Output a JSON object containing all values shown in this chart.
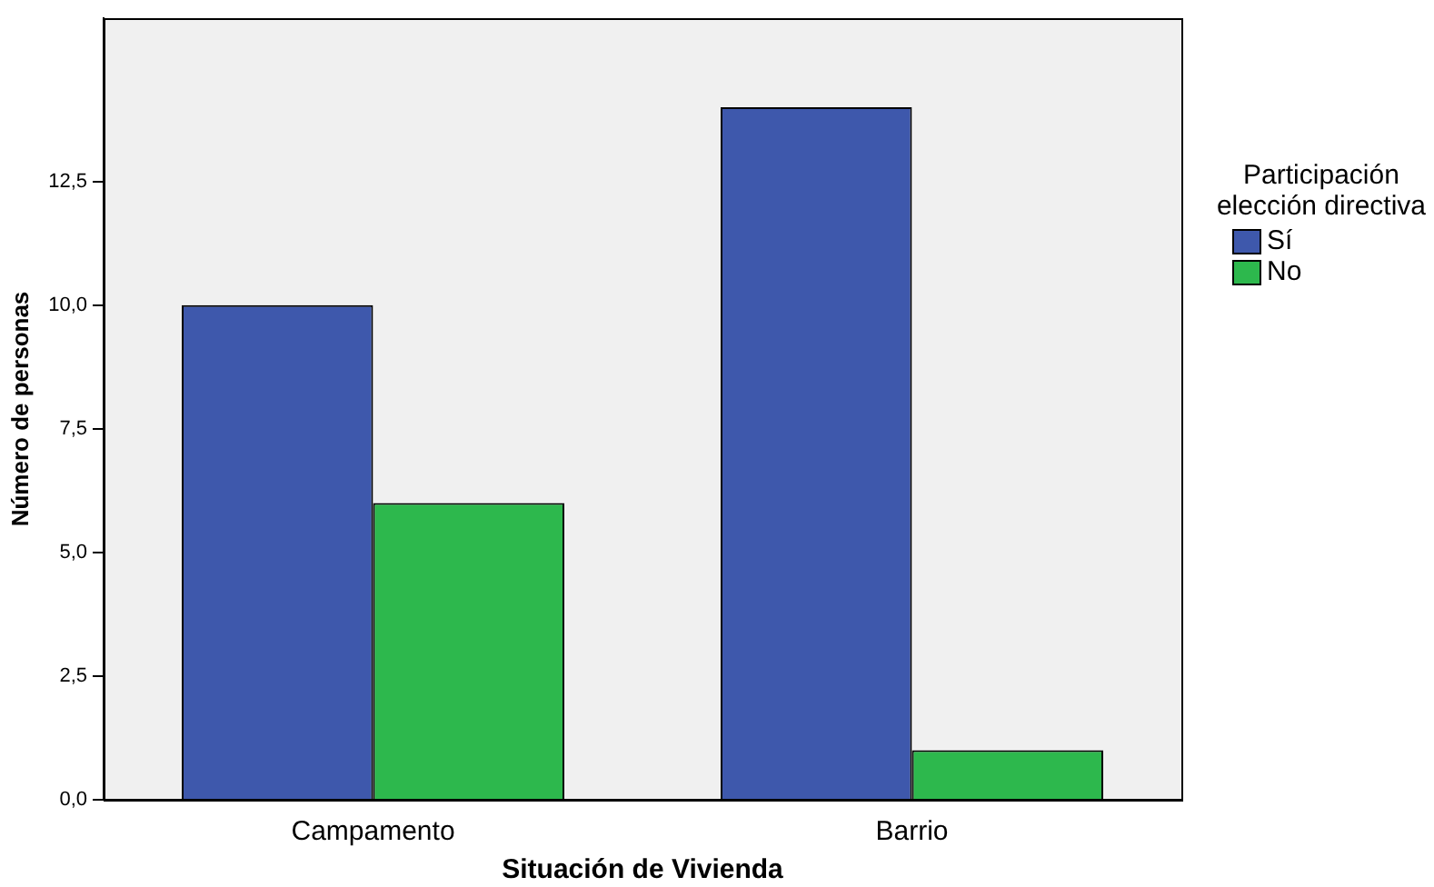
{
  "chart_data": {
    "type": "bar",
    "xlabel": "Situación de Vivienda",
    "ylabel": "Número de personas",
    "legend_title": "Participación elección directiva",
    "legend": "right",
    "grid": false,
    "categories": [
      "Campamento",
      "Barrio"
    ],
    "series": [
      {
        "name": "Sí",
        "color": "#3e58ac",
        "values": [
          10,
          14
        ]
      },
      {
        "name": "No",
        "color": "#2db84d",
        "values": [
          6,
          1
        ]
      }
    ],
    "ylim": [
      0,
      15.8
    ],
    "yticks": [
      {
        "value": 0,
        "label": "0,0"
      },
      {
        "value": 2.5,
        "label": "2,5"
      },
      {
        "value": 5,
        "label": "5,0"
      },
      {
        "value": 7.5,
        "label": "7,5"
      },
      {
        "value": 10,
        "label": "10,0"
      },
      {
        "value": 12.5,
        "label": "12,5"
      }
    ]
  }
}
